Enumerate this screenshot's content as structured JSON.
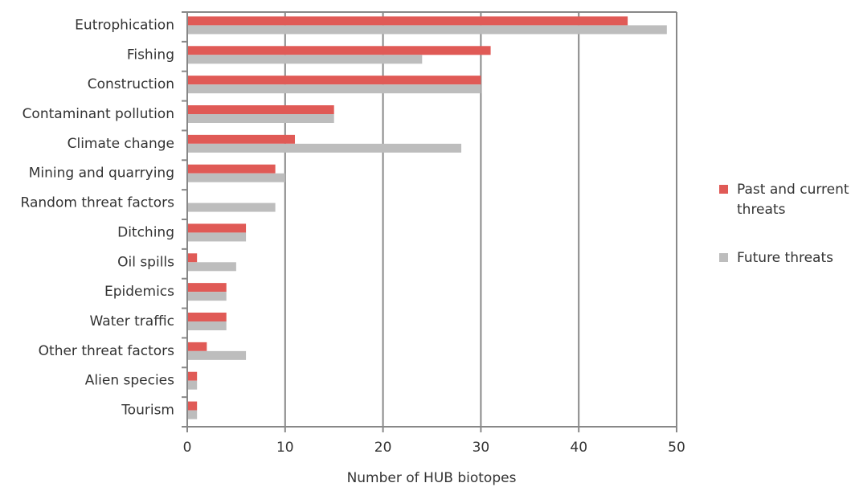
{
  "chart_data": {
    "type": "bar",
    "orientation": "horizontal",
    "x_label": "Number of HUB biotopes",
    "categories": [
      "Eutrophication",
      "Fishing",
      "Construction",
      "Contaminant pollution",
      "Climate change",
      "Mining and quarrying",
      "Random threat factors",
      "Ditching",
      "Oil spills",
      "Epidemics",
      "Water traffic",
      "Other threat factors",
      "Alien species",
      "Tourism"
    ],
    "series": [
      {
        "name": "Past and current threats",
        "color": "#e05a56",
        "values": [
          45,
          31,
          30,
          15,
          11,
          9,
          0,
          6,
          1,
          4,
          4,
          2,
          1,
          1
        ]
      },
      {
        "name": "Future threats",
        "color": "#bdbdbd",
        "values": [
          49,
          24,
          30,
          15,
          28,
          10,
          9,
          6,
          5,
          4,
          4,
          6,
          1,
          1
        ]
      }
    ],
    "xlim": [
      0,
      50
    ],
    "xticks": [
      0,
      10,
      20,
      30,
      40,
      50
    ],
    "grid": true,
    "legend": "right"
  }
}
